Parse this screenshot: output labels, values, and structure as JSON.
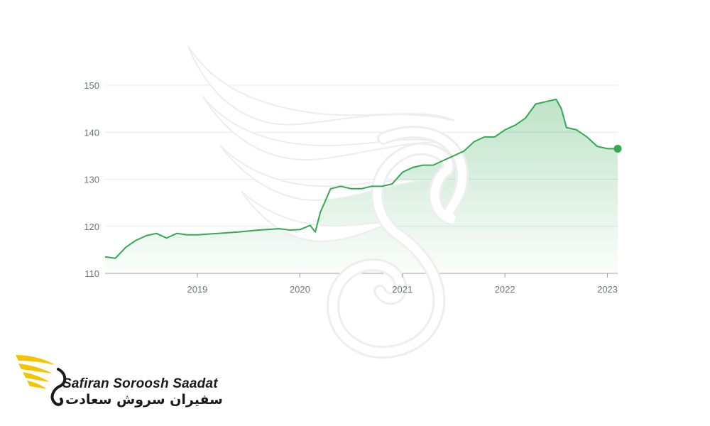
{
  "brand": {
    "name_en": "Safiran Soroosh Saadat",
    "name_fa": "سفیران سروش سعادت",
    "accent_color": "#f5c400",
    "text_color": "#1a1a1a"
  },
  "watermark": {
    "icon": "swan-wing-icon",
    "color": "#f0f0f0"
  },
  "chart_data": {
    "type": "area",
    "title": "",
    "xlabel": "",
    "ylabel": "",
    "x_ticks": [
      "2019",
      "2020",
      "2021",
      "2022",
      "2023"
    ],
    "y_ticks": [
      110,
      120,
      130,
      140,
      150
    ],
    "ylim": [
      110,
      150
    ],
    "xlim": [
      2018.1,
      2023.1
    ],
    "grid": true,
    "line_color": "#34a853",
    "fill_color": "#34a853",
    "series": [
      {
        "x": [
          2018.1,
          2018.2,
          2018.3,
          2018.4,
          2018.5,
          2018.6,
          2018.7,
          2018.8,
          2018.9,
          2019.0,
          2019.2,
          2019.4,
          2019.6,
          2019.8,
          2019.9,
          2020.0,
          2020.1,
          2020.15,
          2020.2,
          2020.3,
          2020.4,
          2020.5,
          2020.6,
          2020.7,
          2020.8,
          2020.9,
          2021.0,
          2021.1,
          2021.2,
          2021.3,
          2021.4,
          2021.5,
          2021.6,
          2021.7,
          2021.8,
          2021.9,
          2022.0,
          2022.1,
          2022.2,
          2022.3,
          2022.4,
          2022.5,
          2022.55,
          2022.6,
          2022.7,
          2022.8,
          2022.9,
          2023.0,
          2023.1
        ],
        "y": [
          113.5,
          113.2,
          115.5,
          117,
          118,
          118.5,
          117.5,
          118.5,
          118.2,
          118.2,
          118.5,
          118.8,
          119.2,
          119.5,
          119.2,
          119.3,
          120.2,
          118.8,
          123,
          128,
          128.5,
          128.0,
          128.0,
          128.5,
          128.5,
          129,
          131.5,
          132.5,
          133,
          133,
          134,
          135,
          136,
          138,
          139,
          139,
          140.5,
          141.5,
          143,
          146,
          146.5,
          147,
          145,
          141,
          140.5,
          139,
          137,
          136.5,
          136.5
        ]
      }
    ],
    "end_marker": true
  }
}
